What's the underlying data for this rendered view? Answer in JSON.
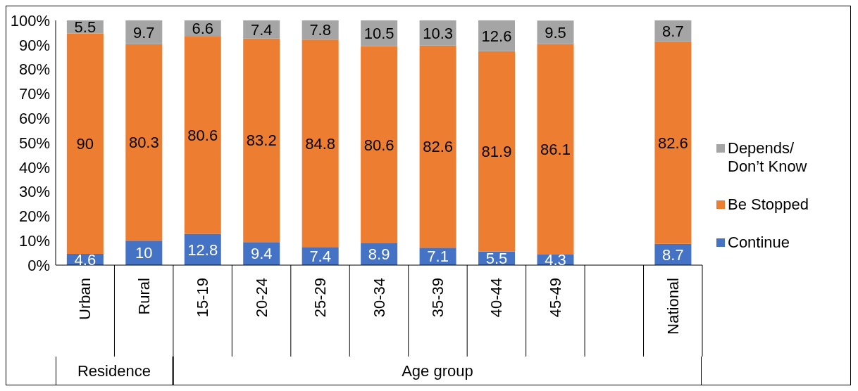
{
  "chart_data": {
    "type": "bar",
    "stacked": true,
    "categories": [
      "Urban",
      "Rural",
      "15-19",
      "20-24",
      "25-29",
      "30-34",
      "35-39",
      "40-44",
      "45-49",
      null,
      "National"
    ],
    "series": [
      {
        "name": "Continue",
        "color": "#4472c4",
        "values": [
          4.6,
          10,
          12.8,
          9.4,
          7.4,
          8.9,
          7.1,
          5.5,
          4.3,
          null,
          8.7
        ]
      },
      {
        "name": "Be Stopped",
        "color": "#ed7d31",
        "values": [
          90,
          80.3,
          80.6,
          83.2,
          84.8,
          80.6,
          82.6,
          81.9,
          86.1,
          null,
          82.6
        ]
      },
      {
        "name": "Depends/ Don’t Know",
        "color": "#a5a5a5",
        "values": [
          5.5,
          9.7,
          6.6,
          7.4,
          7.8,
          10.5,
          10.3,
          12.6,
          9.5,
          null,
          8.7
        ]
      }
    ],
    "ylim": [
      0,
      100
    ],
    "yticks": [
      {
        "value": 0,
        "label": "0%"
      },
      {
        "value": 10,
        "label": "10%"
      },
      {
        "value": 20,
        "label": "20%"
      },
      {
        "value": 30,
        "label": "30%"
      },
      {
        "value": 40,
        "label": "40%"
      },
      {
        "value": 50,
        "label": "50%"
      },
      {
        "value": 60,
        "label": "60%"
      },
      {
        "value": 70,
        "label": "70%"
      },
      {
        "value": 80,
        "label": "80%"
      },
      {
        "value": 90,
        "label": "90%"
      },
      {
        "value": 100,
        "label": "100%"
      }
    ],
    "data_labels": true,
    "legend": "right",
    "grid": false,
    "annotations": [
      "Residence",
      "Age group"
    ]
  }
}
